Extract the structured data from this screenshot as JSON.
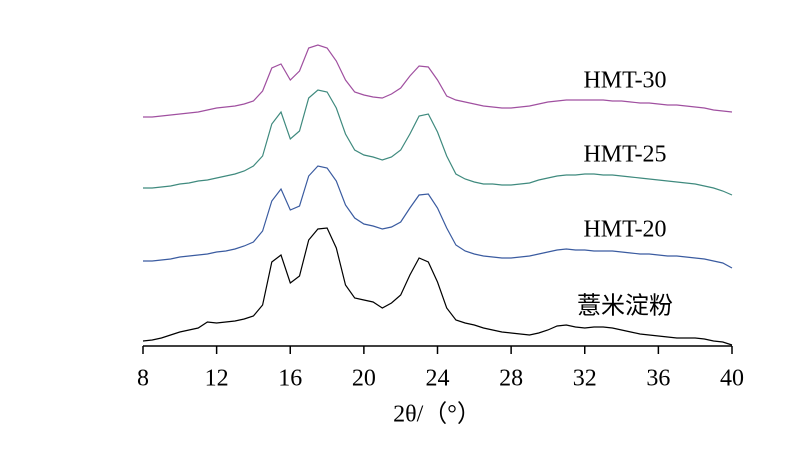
{
  "chart_data": {
    "type": "line",
    "x_label": "2θ/（°）",
    "x": [
      8,
      8.5,
      9,
      9.5,
      10,
      10.5,
      11,
      11.5,
      12,
      12.5,
      13,
      13.5,
      14,
      14.5,
      15,
      15.5,
      16,
      16.5,
      17,
      17.5,
      18,
      18.5,
      19,
      19.5,
      20,
      20.5,
      21,
      21.5,
      22,
      22.5,
      23,
      23.5,
      24,
      24.5,
      25,
      25.5,
      26,
      26.5,
      27,
      27.5,
      28,
      28.5,
      29,
      29.5,
      30,
      30.5,
      31,
      31.5,
      32,
      32.5,
      33,
      33.5,
      34,
      34.5,
      35,
      35.5,
      36,
      36.5,
      37,
      37.5,
      38,
      38.5,
      39,
      39.5,
      40
    ],
    "xlim": [
      8,
      40
    ],
    "xticks": [
      8,
      12,
      16,
      20,
      24,
      28,
      32,
      36,
      40
    ],
    "ylim": [
      0,
      320
    ],
    "series": [
      {
        "name": "HMT-30",
        "color": "#a050a0",
        "values": [
          229,
          229,
          230,
          231,
          232,
          233,
          234,
          236,
          238,
          239,
          240,
          242,
          245,
          255,
          278,
          282,
          266,
          275,
          298,
          301,
          298,
          285,
          266,
          254,
          251,
          249,
          248,
          252,
          258,
          270,
          280,
          279,
          266,
          250,
          246,
          244,
          242,
          240,
          239,
          238,
          238,
          239,
          240,
          242,
          244,
          245,
          246,
          246,
          246,
          246,
          246,
          245,
          245,
          244,
          243,
          243,
          242,
          241,
          241,
          240,
          239,
          238,
          236,
          235,
          234
        ]
      },
      {
        "name": "HMT-25",
        "color": "#3f8a7e",
        "values": [
          158,
          158,
          159,
          160,
          162,
          163,
          165,
          166,
          168,
          170,
          172,
          175,
          180,
          190,
          222,
          234,
          207,
          215,
          248,
          256,
          254,
          238,
          212,
          196,
          191,
          189,
          186,
          189,
          196,
          212,
          230,
          232,
          214,
          190,
          172,
          167,
          164,
          162,
          162,
          161,
          161,
          162,
          163,
          166,
          168,
          170,
          171,
          171,
          172,
          172,
          171,
          171,
          170,
          169,
          168,
          167,
          166,
          165,
          164,
          163,
          162,
          160,
          158,
          155,
          151
        ]
      },
      {
        "name": "HMT-20",
        "color": "#3a5ba0",
        "values": [
          85,
          85,
          86,
          87,
          89,
          90,
          91,
          92,
          94,
          95,
          97,
          100,
          104,
          115,
          145,
          157,
          136,
          140,
          170,
          180,
          178,
          165,
          141,
          128,
          122,
          120,
          117,
          119,
          124,
          138,
          151,
          152,
          138,
          118,
          101,
          95,
          92,
          90,
          89,
          88,
          88,
          89,
          90,
          92,
          94,
          96,
          97,
          96,
          96,
          95,
          95,
          95,
          94,
          93,
          92,
          92,
          91,
          90,
          90,
          89,
          88,
          87,
          85,
          83,
          78
        ]
      },
      {
        "name": "薏米淀粉",
        "color": "#000000",
        "values": [
          5,
          6,
          8,
          11,
          14,
          16,
          18,
          24,
          23,
          24,
          25,
          27,
          30,
          41,
          84,
          91,
          63,
          70,
          106,
          117,
          118,
          98,
          61,
          48,
          46,
          44,
          38,
          43,
          51,
          71,
          88,
          84,
          64,
          38,
          26,
          23,
          21,
          18,
          16,
          14,
          13,
          12,
          11,
          13,
          16,
          20,
          21,
          19,
          18,
          19,
          19,
          18,
          16,
          14,
          12,
          11,
          10,
          9,
          8,
          8,
          8,
          7,
          5,
          4,
          1
        ]
      }
    ]
  }
}
